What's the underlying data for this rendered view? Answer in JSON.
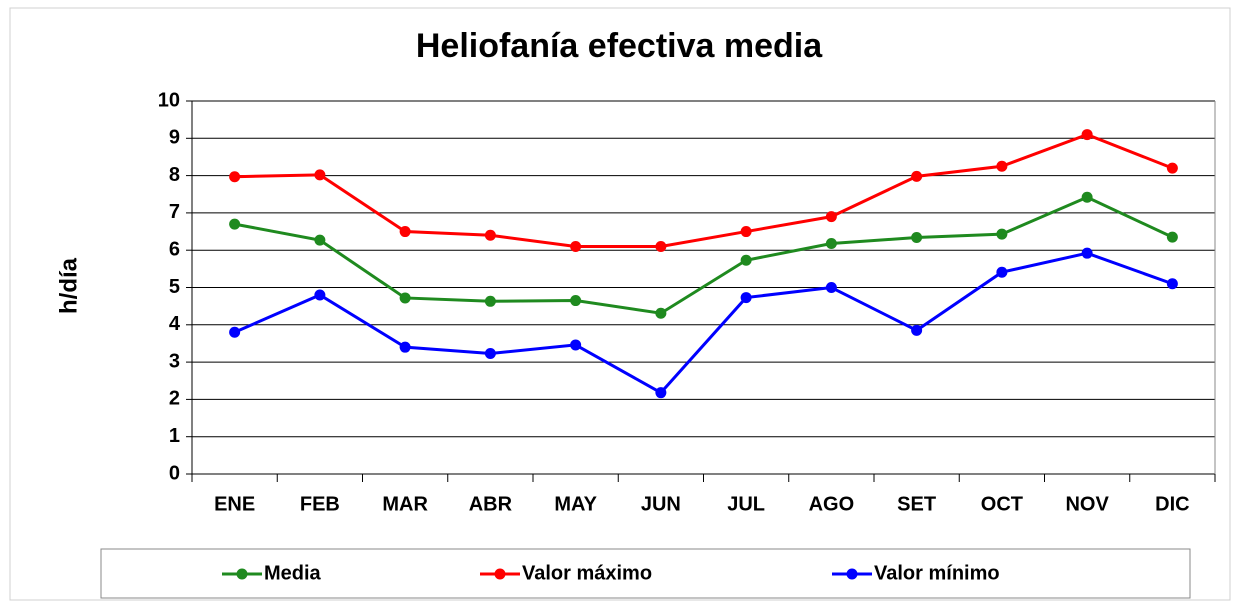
{
  "chart_data": {
    "type": "line",
    "title": "Heliofanía efectiva media",
    "y_label": "h/día",
    "categories": [
      "ENE",
      "FEB",
      "MAR",
      "ABR",
      "MAY",
      "JUN",
      "JUL",
      "AGO",
      "SET",
      "OCT",
      "NOV",
      "DIC"
    ],
    "series": [
      {
        "name": "Media",
        "color": "#1f8a1f",
        "values": [
          6.7,
          6.27,
          4.72,
          4.63,
          4.65,
          4.31,
          5.73,
          6.18,
          6.34,
          6.43,
          7.42,
          6.35
        ]
      },
      {
        "name": "Valor máximo",
        "color": "#ff0000",
        "values": [
          7.97,
          8.02,
          6.5,
          6.4,
          6.1,
          6.1,
          6.5,
          6.9,
          7.98,
          8.25,
          9.1,
          8.2
        ]
      },
      {
        "name": "Valor mínimo",
        "color": "#0000ff",
        "values": [
          3.8,
          4.8,
          3.4,
          3.23,
          3.46,
          2.18,
          4.73,
          5.0,
          3.85,
          5.41,
          5.92,
          5.1
        ]
      }
    ],
    "ylim": [
      0,
      10
    ],
    "yticks": [
      0,
      1,
      2,
      3,
      4,
      5,
      6,
      7,
      8,
      9,
      10
    ],
    "grid": true,
    "legend": "bottom"
  }
}
